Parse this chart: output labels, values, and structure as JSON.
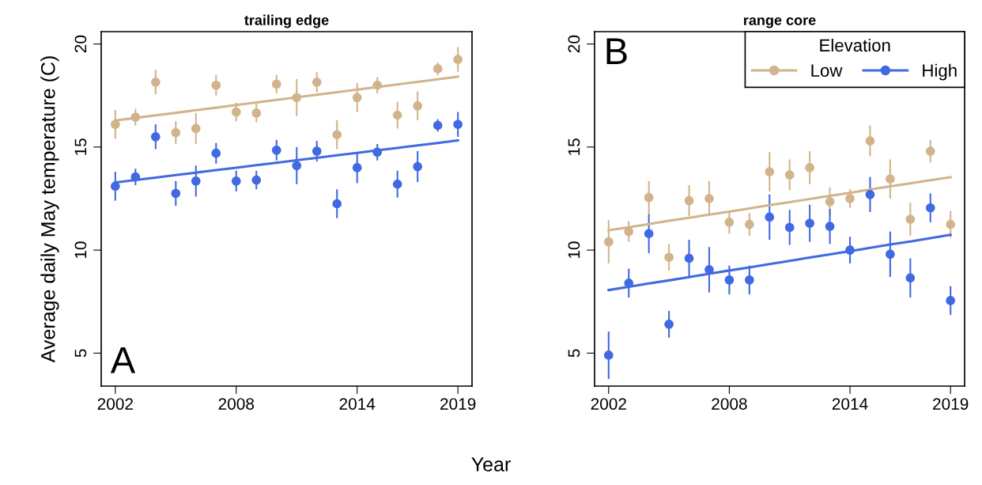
{
  "chart_data": [
    {
      "type": "scatter",
      "title": "trailing edge",
      "xlabel": "Year",
      "ylabel": "Average daily May temperature (C)",
      "annotations": [
        "A"
      ],
      "xlim": [
        2001.3,
        2019.7
      ],
      "ylim": [
        3.4,
        20.6
      ],
      "xticks": [
        2002,
        2008,
        2014,
        2019
      ],
      "yticks": [
        5,
        10,
        15,
        20
      ],
      "marker": "circle",
      "legend": false,
      "grid": false,
      "x": [
        2002,
        2003,
        2004,
        2005,
        2006,
        2007,
        2008,
        2009,
        2010,
        2011,
        2012,
        2013,
        2014,
        2015,
        2016,
        2017,
        2018,
        2019
      ],
      "series": [
        {
          "color": "#d2b48c",
          "values": [
            16.1,
            16.45,
            18.15,
            15.7,
            15.9,
            18.0,
            16.7,
            16.65,
            18.05,
            17.4,
            18.15,
            15.6,
            17.4,
            18.0,
            16.55,
            17.0,
            18.8,
            19.25
          ],
          "errors": [
            0.7,
            0.4,
            0.6,
            0.55,
            0.75,
            0.5,
            0.45,
            0.45,
            0.45,
            0.9,
            0.5,
            0.7,
            0.7,
            0.4,
            0.65,
            0.7,
            0.3,
            0.6
          ]
        },
        {
          "color": "#4169e1",
          "values": [
            13.1,
            13.55,
            15.5,
            12.75,
            13.35,
            14.7,
            13.35,
            13.4,
            14.85,
            14.1,
            14.8,
            12.25,
            14.0,
            14.75,
            13.2,
            14.05,
            16.05,
            16.1
          ],
          "errors": [
            0.7,
            0.4,
            0.6,
            0.6,
            0.75,
            0.5,
            0.5,
            0.45,
            0.5,
            0.9,
            0.5,
            0.7,
            0.75,
            0.4,
            0.65,
            0.75,
            0.3,
            0.6
          ]
        },
        {
          "type": "line",
          "marker": "none",
          "color": "#d2b48c",
          "values": [
            16.29,
            16.41,
            16.54,
            16.66,
            16.79,
            16.91,
            17.04,
            17.16,
            17.29,
            17.41,
            17.54,
            17.66,
            17.79,
            17.91,
            18.04,
            18.16,
            18.29,
            18.41
          ]
        },
        {
          "type": "line",
          "marker": "none",
          "color": "#4169e1",
          "values": [
            13.28,
            13.4,
            13.52,
            13.64,
            13.76,
            13.88,
            14.0,
            14.12,
            14.24,
            14.36,
            14.48,
            14.6,
            14.72,
            14.84,
            14.96,
            15.08,
            15.2,
            15.32
          ]
        }
      ]
    },
    {
      "type": "scatter",
      "title": "range core",
      "annotations": [
        "B"
      ],
      "xlim": [
        2001.3,
        2019.7
      ],
      "ylim": [
        3.4,
        20.6
      ],
      "xticks": [
        2002,
        2008,
        2014,
        2019
      ],
      "yticks": [
        5,
        10,
        15,
        20
      ],
      "marker": "circle",
      "legend": "top right",
      "legend_title": "Elevation",
      "grid": false,
      "x": [
        2002,
        2003,
        2004,
        2005,
        2006,
        2007,
        2008,
        2009,
        2010,
        2011,
        2012,
        2013,
        2014,
        2015,
        2016,
        2017,
        2018,
        2019
      ],
      "series": [
        {
          "name": "Low",
          "color": "#d2b48c",
          "values": [
            10.4,
            10.9,
            12.55,
            9.65,
            12.4,
            12.5,
            11.35,
            11.25,
            13.8,
            13.65,
            14.0,
            12.35,
            12.5,
            15.3,
            13.45,
            11.5,
            14.8,
            11.25
          ],
          "errors": [
            1.05,
            0.5,
            0.8,
            0.65,
            0.75,
            0.85,
            0.55,
            0.55,
            0.95,
            0.75,
            0.8,
            0.7,
            0.45,
            0.75,
            0.95,
            0.8,
            0.55,
            0.65
          ]
        },
        {
          "name": "High",
          "color": "#4169e1",
          "values": [
            4.9,
            8.4,
            10.8,
            6.4,
            9.6,
            9.05,
            8.55,
            8.55,
            11.6,
            11.1,
            11.3,
            11.15,
            10.0,
            12.7,
            9.8,
            8.65,
            12.05,
            7.55
          ],
          "errors": [
            1.15,
            0.7,
            0.95,
            0.65,
            0.9,
            1.1,
            0.7,
            0.7,
            1.1,
            0.85,
            0.9,
            0.85,
            0.65,
            0.85,
            1.1,
            0.95,
            0.7,
            0.7
          ]
        },
        {
          "type": "line",
          "marker": "none",
          "color": "#d2b48c",
          "values": [
            10.96,
            11.11,
            11.26,
            11.42,
            11.57,
            11.72,
            11.87,
            12.02,
            12.18,
            12.33,
            12.48,
            12.63,
            12.78,
            12.94,
            13.09,
            13.24,
            13.39,
            13.54
          ]
        },
        {
          "type": "line",
          "marker": "none",
          "color": "#4169e1",
          "values": [
            8.06,
            8.22,
            8.38,
            8.53,
            8.69,
            8.85,
            9.01,
            9.16,
            9.32,
            9.48,
            9.64,
            9.79,
            9.95,
            10.11,
            10.27,
            10.42,
            10.58,
            10.74
          ]
        }
      ]
    }
  ]
}
